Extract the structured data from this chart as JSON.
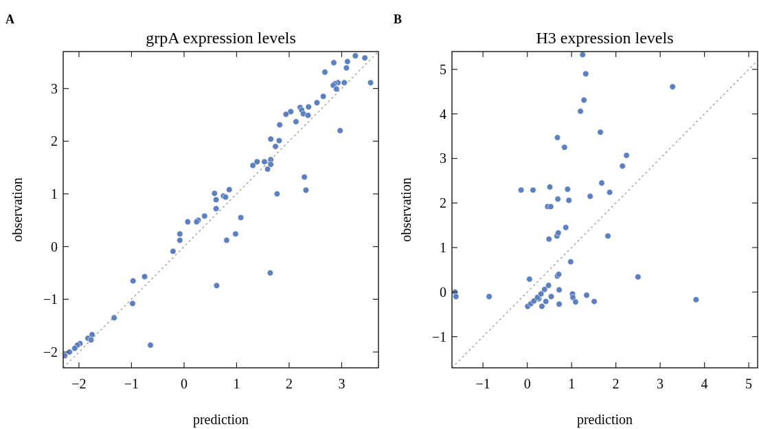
{
  "chart_data": [
    {
      "type": "scatter",
      "title": "grpA expression levels",
      "xlabel": "prediction",
      "ylabel": "observation",
      "annotations": [
        "A"
      ],
      "xlim": [
        -2.3,
        3.7
      ],
      "ylim": [
        -2.3,
        3.7
      ],
      "xticks": [
        -2,
        -1,
        0,
        1,
        2,
        3
      ],
      "yticks": [
        -2,
        -1,
        0,
        1,
        2,
        3
      ],
      "grid": false,
      "series": [
        {
          "color": "#5b7fbf",
          "marker": "circle",
          "x": [
            3.26,
            3.44,
            3.11,
            2.85,
            3.09,
            2.68,
            3.55,
            3.05,
            2.93,
            2.87,
            2.84,
            2.9,
            2.65,
            2.53,
            2.37,
            2.21,
            2.24,
            2.27,
            2.36,
            2.03,
            1.94,
            2.13,
            1.82,
            2.97,
            1.65,
            1.81,
            1.74,
            1.39,
            1.53,
            1.31,
            1.65,
            1.65,
            1.59,
            2.29,
            2.32,
            1.77,
            0.58,
            0.86,
            0.75,
            0.79,
            0.61,
            0.61,
            1.08,
            0.39,
            0.27,
            0.24,
            0.07,
            -0.08,
            -0.08,
            0.98,
            0.81,
            -0.21,
            1.64,
            0.62,
            -0.75,
            -0.97,
            -0.98,
            -1.33,
            -0.64,
            -1.75,
            -1.83,
            -1.77,
            -1.98,
            -2.03,
            -2.08,
            -2.18,
            -2.27
          ],
          "values": [
            3.62,
            3.58,
            3.51,
            3.49,
            3.39,
            3.31,
            3.11,
            3.11,
            3.11,
            3.09,
            3.06,
            2.99,
            2.85,
            2.73,
            2.65,
            2.64,
            2.59,
            2.52,
            2.49,
            2.56,
            2.51,
            2.37,
            2.31,
            2.2,
            2.04,
            2.01,
            1.9,
            1.61,
            1.61,
            1.54,
            1.65,
            1.56,
            1.47,
            1.32,
            1.07,
            1.0,
            1.01,
            1.08,
            0.96,
            0.94,
            0.89,
            0.72,
            0.55,
            0.58,
            0.5,
            0.47,
            0.47,
            0.24,
            0.12,
            0.24,
            0.12,
            -0.09,
            -0.5,
            -0.74,
            -0.57,
            -0.65,
            -1.08,
            -1.35,
            -1.87,
            -1.67,
            -1.74,
            -1.77,
            -1.84,
            -1.87,
            -1.93,
            -2.0,
            -2.07
          ]
        },
        {
          "type": "line",
          "color": "#999999",
          "line_style": "dashed",
          "marker": "none",
          "x": [
            -2.3,
            3.7
          ],
          "values": [
            -2.3,
            3.7
          ]
        }
      ]
    },
    {
      "type": "scatter",
      "title": "H3 expression levels",
      "xlabel": "prediction",
      "ylabel": "observation",
      "annotations": [
        "B"
      ],
      "xlim": [
        -1.7,
        5.2
      ],
      "ylim": [
        -1.7,
        5.4
      ],
      "xticks": [
        -1,
        0,
        1,
        2,
        3,
        4,
        5
      ],
      "yticks": [
        -1,
        0,
        1,
        2,
        3,
        4,
        5
      ],
      "grid": false,
      "series": [
        {
          "color": "#5b7fbf",
          "marker": "circle",
          "x": [
            1.25,
            1.32,
            3.28,
            1.28,
            1.2,
            1.65,
            0.68,
            0.84,
            2.24,
            2.15,
            1.68,
            -0.14,
            0.13,
            0.51,
            0.91,
            1.86,
            0.69,
            0.94,
            1.42,
            0.46,
            0.53,
            0.87,
            1.82,
            0.49,
            0.67,
            0.7,
            0.98,
            2.5,
            0.05,
            0.68,
            0.71,
            -1.63,
            -1.61,
            -0.86,
            3.81,
            1.51,
            1.34,
            1.02,
            1.03,
            1.09,
            0.72,
            0.72,
            0.48,
            0.54,
            0.42,
            0.33,
            0.26,
            0.01,
            0.08,
            0.15,
            0.23,
            0.31,
            0.39
          ],
          "values": [
            5.33,
            4.9,
            4.61,
            4.31,
            4.06,
            3.59,
            3.47,
            3.25,
            3.07,
            2.83,
            2.45,
            2.29,
            2.29,
            2.36,
            2.31,
            2.24,
            2.09,
            2.06,
            2.15,
            1.92,
            1.92,
            1.45,
            1.26,
            1.19,
            1.26,
            1.33,
            0.68,
            0.34,
            0.29,
            0.36,
            0.4,
            0.0,
            -0.1,
            -0.1,
            -0.17,
            -0.21,
            -0.07,
            -0.04,
            -0.12,
            -0.22,
            0.05,
            -0.27,
            0.15,
            -0.1,
            -0.21,
            -0.32,
            -0.15,
            -0.32,
            -0.26,
            -0.2,
            -0.12,
            -0.04,
            0.06
          ]
        },
        {
          "type": "line",
          "color": "#999999",
          "line_style": "dashed",
          "marker": "none",
          "x": [
            -1.7,
            5.2
          ],
          "values": [
            -1.7,
            5.2
          ]
        }
      ]
    }
  ]
}
